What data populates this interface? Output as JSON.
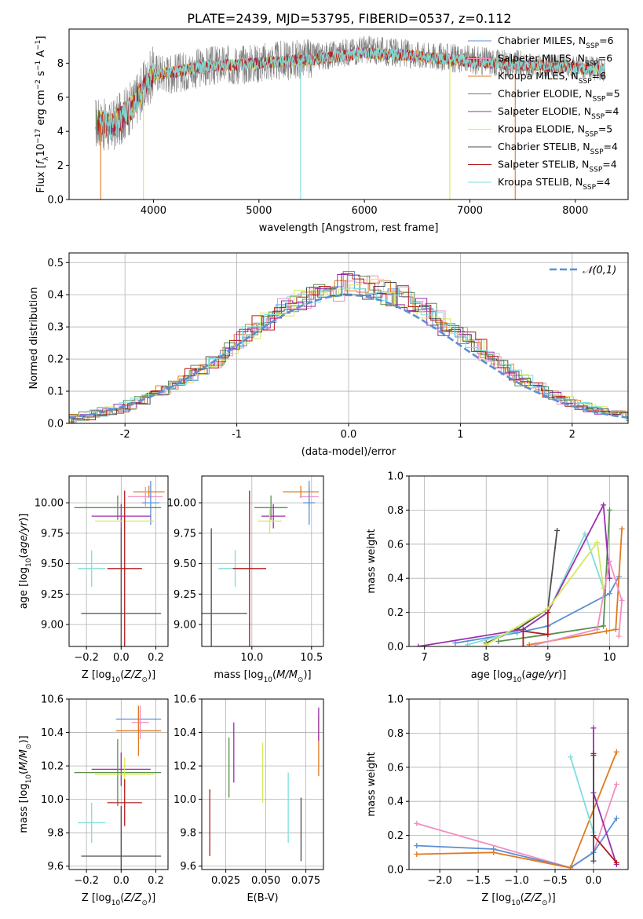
{
  "title": "PLATE=2439, MJD=53795, FIBERID=0537, z=0.112",
  "chart_data": [
    {
      "id": "spectrum",
      "type": "line",
      "xlabel": "wavelength [Angstrom, rest frame]",
      "ylabel": "Flux [f_λ 10^-17 erg cm^-2 s^-1 A^-1]",
      "xlim": [
        3200,
        8500
      ],
      "ylim": [
        0,
        10
      ],
      "xticks": [
        4000,
        5000,
        6000,
        7000,
        8000
      ],
      "yticks": [
        0,
        2,
        4,
        6,
        8
      ],
      "grid": false,
      "legend_position": "top-right",
      "data_x_range": [
        3450,
        8280
      ],
      "series": [
        {
          "name": "Chabrier MILES, N_SSP=6",
          "color": "#5b8fd4"
        },
        {
          "name": "Salpeter MILES, N_SSP=6",
          "color": "#f28ec0"
        },
        {
          "name": "Kroupa MILES, N_SSP=6",
          "color": "#e07a1f"
        },
        {
          "name": "Chabrier ELODIE, N_SSP=5",
          "color": "#5a8f4e"
        },
        {
          "name": "Salpeter ELODIE, N_SSP=4",
          "color": "#9b2fae"
        },
        {
          "name": "Kroupa ELODIE, N_SSP=5",
          "color": "#d4ea5a"
        },
        {
          "name": "Chabrier STELIB, N_SSP=4",
          "color": "#4d4d4d"
        },
        {
          "name": "Salpeter STELIB, N_SSP=4",
          "color": "#b31b1b"
        },
        {
          "name": "Kroupa STELIB, N_SSP=4",
          "color": "#7edede"
        }
      ],
      "data_curve": {
        "x": [
          3450,
          3600,
          3800,
          4000,
          4200,
          4500,
          5000,
          5500,
          6000,
          6500,
          7000,
          7500,
          8000,
          8280
        ],
        "y": [
          4.5,
          4.2,
          5.5,
          7.5,
          7.4,
          7.8,
          8.0,
          8.3,
          8.8,
          8.5,
          8.2,
          7.9,
          7.8,
          7.6
        ]
      },
      "model_curve": {
        "x": [
          3450,
          3600,
          3800,
          4000,
          4200,
          4500,
          5000,
          5500,
          6000,
          6500,
          7000,
          7500,
          8000,
          8280
        ],
        "y": [
          4.6,
          4.3,
          5.4,
          7.3,
          7.5,
          7.8,
          8.0,
          8.2,
          8.6,
          8.4,
          8.1,
          7.9,
          7.7,
          7.6
        ]
      }
    },
    {
      "id": "residuals",
      "type": "histogram",
      "xlabel": "(data-model)/error",
      "ylabel": "Normed distribution",
      "xlim": [
        -2.5,
        2.5
      ],
      "ylim": [
        0,
        0.53
      ],
      "xticks": [
        -2,
        -1,
        0,
        1,
        2
      ],
      "yticks": [
        0.0,
        0.1,
        0.2,
        0.3,
        0.4,
        0.5
      ],
      "grid": true,
      "legend_position": "top-right",
      "reference_curve": {
        "name": "𝒩(0,1)",
        "color": "#5b8fd4",
        "style": "dashed"
      },
      "bin_edges_range": [
        -2.5,
        2.5
      ],
      "bin_width": 0.1
    },
    {
      "id": "age_vs_Z",
      "type": "scatter",
      "xlabel": "Z [log10(Z/Z⊙)]",
      "ylabel": "age  [log10(age/yr)]",
      "xlim": [
        -0.3,
        0.27
      ],
      "ylim": [
        8.82,
        10.22
      ],
      "xticks": [
        -0.2,
        0.0,
        0.2
      ],
      "yticks": [
        9.0,
        9.25,
        9.5,
        9.75,
        10.0
      ],
      "grid": true,
      "points": [
        {
          "x": 0.16,
          "y": 10.09,
          "xerr": 0.09,
          "yerr": 0.05,
          "color": "#e07a1f"
        },
        {
          "x": 0.14,
          "y": 10.05,
          "xerr": 0.1,
          "yerr": 0.08,
          "color": "#f28ec0"
        },
        {
          "x": 0.17,
          "y": 10.0,
          "xerr": 0.05,
          "yerr": 0.18,
          "color": "#5b8fd4"
        },
        {
          "x": -0.02,
          "y": 9.96,
          "xerr": 0.25,
          "yerr": 0.1,
          "color": "#5a8f4e"
        },
        {
          "x": 0.0,
          "y": 9.89,
          "xerr": 0.17,
          "yerr": 0.1,
          "color": "#9b2fae"
        },
        {
          "x": 0.02,
          "y": 9.85,
          "xerr": 0.17,
          "yerr": 0.1,
          "color": "#d4ea5a"
        },
        {
          "x": -0.17,
          "y": 9.46,
          "xerr": 0.08,
          "yerr": 0.15,
          "color": "#7edede"
        },
        {
          "x": 0.02,
          "y": 9.46,
          "xerr": 0.1,
          "yerr": 0.64,
          "color": "#b31b1b"
        },
        {
          "x": 0.0,
          "y": 9.09,
          "xerr": 0.23,
          "yerr": 0.7,
          "color": "#4d4d4d"
        }
      ]
    },
    {
      "id": "age_vs_mass",
      "type": "scatter",
      "xlabel": "mass [log10(M/M⊙)]",
      "ylabel": "",
      "xlim": [
        9.58,
        10.6
      ],
      "ylim": [
        8.82,
        10.22
      ],
      "xticks": [
        9.5,
        10.0,
        10.5
      ],
      "yticks": [
        9.0,
        9.25,
        9.5,
        9.75,
        10.0
      ],
      "grid": true,
      "points": [
        {
          "x": 10.41,
          "y": 10.09,
          "xerr": 0.15,
          "yerr": 0.05,
          "color": "#e07a1f"
        },
        {
          "x": 10.48,
          "y": 10.05,
          "xerr": 0.08,
          "yerr": 0.08,
          "color": "#f28ec0"
        },
        {
          "x": 10.48,
          "y": 10.0,
          "xerr": 0.05,
          "yerr": 0.18,
          "color": "#5b8fd4"
        },
        {
          "x": 10.16,
          "y": 9.96,
          "xerr": 0.14,
          "yerr": 0.1,
          "color": "#5a8f4e"
        },
        {
          "x": 10.18,
          "y": 9.89,
          "xerr": 0.1,
          "yerr": 0.1,
          "color": "#9b2fae"
        },
        {
          "x": 10.15,
          "y": 9.85,
          "xerr": 0.1,
          "yerr": 0.1,
          "color": "#d4ea5a"
        },
        {
          "x": 9.86,
          "y": 9.46,
          "xerr": 0.14,
          "yerr": 0.15,
          "color": "#7edede"
        },
        {
          "x": 9.98,
          "y": 9.46,
          "xerr": 0.14,
          "yerr": 0.64,
          "color": "#b31b1b"
        },
        {
          "x": 9.66,
          "y": 9.09,
          "xerr": 0.3,
          "yerr": 0.7,
          "color": "#4d4d4d"
        }
      ]
    },
    {
      "id": "mass_weight_vs_age",
      "type": "line",
      "xlabel": "age  [log10(age/yr)]",
      "ylabel": "mass weight",
      "xlim": [
        6.75,
        10.3
      ],
      "ylim": [
        0,
        1.0
      ],
      "xticks": [
        7,
        8,
        9,
        10
      ],
      "yticks": [
        0.0,
        0.2,
        0.4,
        0.6,
        0.8,
        1.0
      ],
      "grid": true,
      "series": [
        {
          "color": "#4d4d4d",
          "x": [
            8.0,
            8.5,
            9.0,
            9.15
          ],
          "y": [
            0.02,
            0.1,
            0.22,
            0.68
          ]
        },
        {
          "color": "#5b8fd4",
          "x": [
            7.5,
            8.5,
            9.0,
            10.0,
            10.15
          ],
          "y": [
            0.02,
            0.08,
            0.12,
            0.31,
            0.41
          ]
        },
        {
          "color": "#7edede",
          "x": [
            7.7,
            8.6,
            9.0,
            9.6,
            9.9
          ],
          "y": [
            0.01,
            0.1,
            0.2,
            0.66,
            0.34
          ]
        },
        {
          "color": "#5a8f4e",
          "x": [
            8.2,
            9.0,
            9.9,
            10.0
          ],
          "y": [
            0.03,
            0.07,
            0.12,
            0.8
          ]
        },
        {
          "color": "#9b2fae",
          "x": [
            6.9,
            8.6,
            9.0,
            9.9,
            10.0
          ],
          "y": [
            0.0,
            0.1,
            0.2,
            0.83,
            0.4
          ]
        },
        {
          "color": "#d4ea5a",
          "x": [
            8.0,
            9.0,
            9.8,
            9.9
          ],
          "y": [
            0.01,
            0.22,
            0.61,
            0.34
          ]
        },
        {
          "color": "#b31b1b",
          "x": [
            8.6,
            8.6,
            9.0,
            9.0
          ],
          "y": [
            0.0,
            0.09,
            0.07,
            0.2
          ]
        },
        {
          "color": "#e07a1f",
          "x": [
            8.7,
            9.95,
            10.1,
            10.2
          ],
          "y": [
            0.01,
            0.09,
            0.1,
            0.69
          ]
        },
        {
          "color": "#f28ec0",
          "x": [
            8.8,
            9.8,
            10.0,
            10.2,
            10.15
          ],
          "y": [
            0.01,
            0.1,
            0.5,
            0.27,
            0.06
          ]
        }
      ]
    },
    {
      "id": "mass_vs_Z",
      "type": "scatter",
      "xlabel": "Z [log10(Z/Z⊙)]",
      "ylabel": "mass [log10(M/M⊙)]",
      "xlim": [
        -0.3,
        0.27
      ],
      "ylim": [
        9.58,
        10.6
      ],
      "xticks": [
        -0.2,
        0.0,
        0.2
      ],
      "yticks": [
        9.6,
        9.8,
        10.0,
        10.2,
        10.4,
        10.6
      ],
      "grid": true,
      "points": [
        {
          "x": 0.1,
          "y": 10.48,
          "xerr": 0.13,
          "yerr": 0.07,
          "color": "#5b8fd4"
        },
        {
          "x": 0.1,
          "y": 10.41,
          "xerr": 0.13,
          "yerr": 0.15,
          "color": "#e07a1f"
        },
        {
          "x": 0.11,
          "y": 10.46,
          "xerr": 0.05,
          "yerr": 0.1,
          "color": "#f28ec0"
        },
        {
          "x": 0.0,
          "y": 10.18,
          "xerr": 0.17,
          "yerr": 0.1,
          "color": "#9b2fae"
        },
        {
          "x": -0.02,
          "y": 10.16,
          "xerr": 0.25,
          "yerr": 0.2,
          "color": "#5a8f4e"
        },
        {
          "x": 0.02,
          "y": 10.15,
          "xerr": 0.17,
          "yerr": 0.1,
          "color": "#d4ea5a"
        },
        {
          "x": 0.02,
          "y": 9.98,
          "xerr": 0.1,
          "yerr": 0.14,
          "color": "#b31b1b"
        },
        {
          "x": -0.17,
          "y": 9.86,
          "xerr": 0.08,
          "yerr": 0.12,
          "color": "#7edede"
        },
        {
          "x": 0.0,
          "y": 9.66,
          "xerr": 0.23,
          "yerr": 0.3,
          "color": "#4d4d4d"
        }
      ]
    },
    {
      "id": "mass_vs_EBV",
      "type": "scatter",
      "xlabel": "E(B-V)",
      "ylabel": "",
      "xlim": [
        0.01,
        0.086
      ],
      "ylim": [
        9.58,
        10.6
      ],
      "xticks": [
        0.025,
        0.05,
        0.075
      ],
      "yticks": [
        9.6,
        9.8,
        10.0,
        10.2,
        10.4,
        10.6
      ],
      "grid": true,
      "points": [
        {
          "x": 0.015,
          "y": 9.86,
          "yerr": 0.2,
          "color": "#b31b1b"
        },
        {
          "x": 0.027,
          "y": 10.19,
          "yerr": 0.18,
          "color": "#5a8f4e"
        },
        {
          "x": 0.03,
          "y": 10.28,
          "yerr": 0.18,
          "color": "#9b2fae"
        },
        {
          "x": 0.048,
          "y": 10.16,
          "yerr": 0.18,
          "color": "#d4ea5a"
        },
        {
          "x": 0.064,
          "y": 9.95,
          "yerr": 0.21,
          "color": "#7edede"
        },
        {
          "x": 0.072,
          "y": 9.82,
          "yerr": 0.19,
          "color": "#4d4d4d"
        },
        {
          "x": 0.083,
          "y": 10.32,
          "yerr": 0.18,
          "color": "#e07a1f"
        },
        {
          "x": 0.083,
          "y": 10.45,
          "yerr": 0.1,
          "color": "#9b2fae"
        }
      ]
    },
    {
      "id": "mass_weight_vs_Z",
      "type": "line",
      "xlabel": "Z [log10(Z/Z⊙)]",
      "ylabel": "mass weight",
      "xlim": [
        -2.4,
        0.45
      ],
      "ylim": [
        0,
        1.0
      ],
      "xticks": [
        -2.0,
        -1.5,
        -1.0,
        -0.5,
        0.0
      ],
      "yticks": [
        0.0,
        0.2,
        0.4,
        0.6,
        0.8,
        1.0
      ],
      "grid": true,
      "series": [
        {
          "color": "#f28ec0",
          "x": [
            -2.3,
            -0.3,
            0.0,
            0.3
          ],
          "y": [
            0.27,
            0.01,
            0.1,
            0.5
          ]
        },
        {
          "color": "#5b8fd4",
          "x": [
            -2.3,
            -1.3,
            -0.3,
            0.0,
            0.3
          ],
          "y": [
            0.14,
            0.12,
            0.01,
            0.1,
            0.3
          ]
        },
        {
          "color": "#e07a1f",
          "x": [
            -2.3,
            -1.3,
            -0.3,
            0.3
          ],
          "y": [
            0.09,
            0.1,
            0.01,
            0.69
          ]
        },
        {
          "color": "#7edede",
          "x": [
            -0.3,
            0.0,
            0.0
          ],
          "y": [
            0.66,
            0.22,
            0.05
          ]
        },
        {
          "color": "#9b2fae",
          "x": [
            0.0,
            0.0,
            0.3
          ],
          "y": [
            0.83,
            0.45,
            0.03
          ]
        },
        {
          "color": "#b31b1b",
          "x": [
            0.0,
            0.0,
            0.3
          ],
          "y": [
            0.68,
            0.2,
            0.04
          ]
        },
        {
          "color": "#4d4d4d",
          "x": [
            0.0,
            0.0
          ],
          "y": [
            0.67,
            0.05
          ]
        }
      ]
    }
  ]
}
